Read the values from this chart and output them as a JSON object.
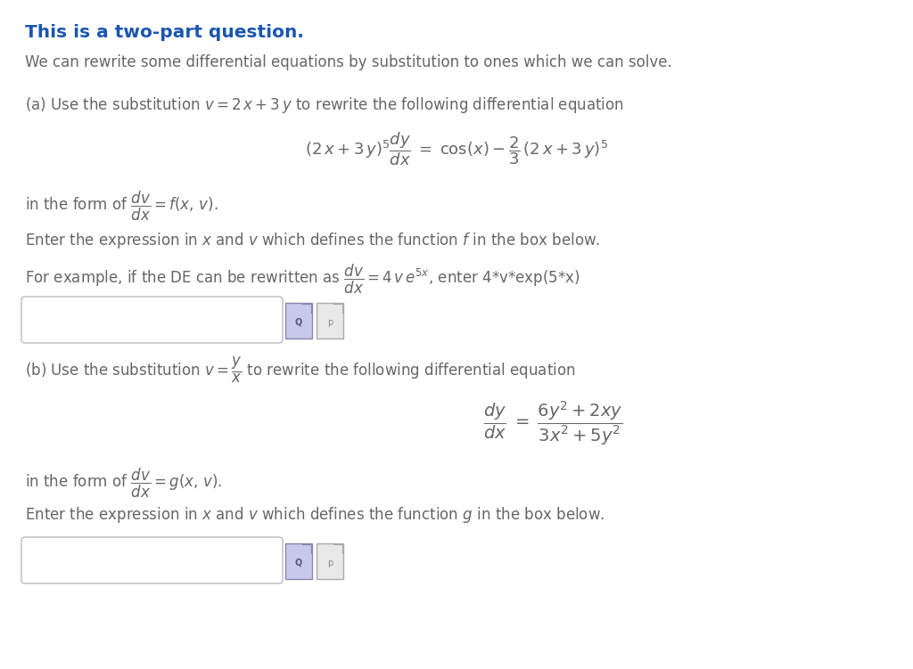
{
  "bg_color": "#ffffff",
  "title_text": "This is a two-part question.",
  "title_color": "#1a56b0",
  "body_color": "#666666",
  "line1": "We can rewrite some differential equations by substitution to ones which we can solve.",
  "line_a": "(a) Use the substitution $v = 2\\,x + 3\\,y$ to rewrite the following differential equation",
  "eq_a": "$(2\\,x + 3\\,y)^5\\dfrac{dy}{dx} \\;=\\; \\cos(x) - \\dfrac{2}{3}\\,(2\\,x + 3\\,y)^5$",
  "line_a2": "in the form of $\\dfrac{dv}{dx} = f(x,\\,v)$.",
  "line_a3": "Enter the expression in $x$ and $v$ which defines the function $f$ in the box below.",
  "line_a4": "For example, if the DE can be rewritten as $\\dfrac{dv}{dx} = 4\\,v\\,e^{5x}$, enter 4*v*exp(5*x)",
  "line_b": "(b) Use the substitution $v = \\dfrac{y}{x}$ to rewrite the following differential equation",
  "eq_b": "$\\dfrac{dy}{dx} \\;=\\; \\dfrac{6y^2+2xy}{3x^2+5y^2}$",
  "line_b2": "in the form of $\\dfrac{dv}{dx} = g(x,\\,v)$.",
  "line_b3": "Enter the expression in $x$ and $v$ which defines the function $g$ in the box below.",
  "figw": 10.24,
  "figh": 7.51,
  "dpi": 100
}
